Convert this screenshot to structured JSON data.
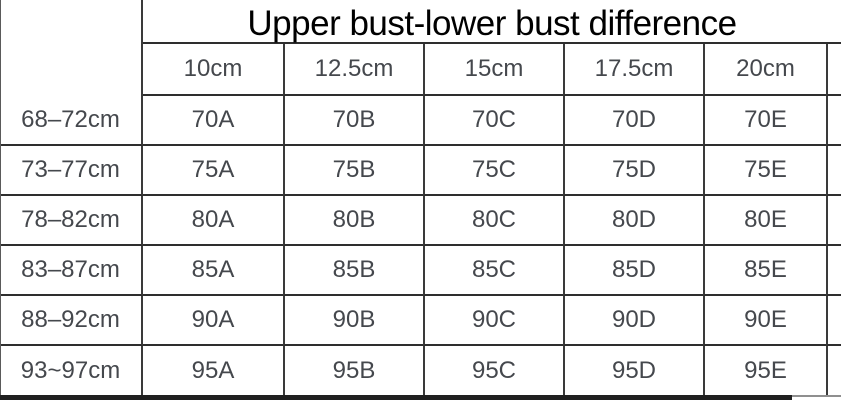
{
  "chart_data": {
    "type": "table",
    "title": "Upper bust-lower bust difference",
    "corner_label": "",
    "column_headers": [
      "10cm",
      "12.5cm",
      "15cm",
      "17.5cm",
      "20cm"
    ],
    "row_headers": [
      "68–72cm",
      "73–77cm",
      "78–82cm",
      "83–87cm",
      "88–92cm",
      "93~97cm"
    ],
    "rows": [
      [
        "70A",
        "70B",
        "70C",
        "70D",
        "70E"
      ],
      [
        "75A",
        "75B",
        "75C",
        "75D",
        "75E"
      ],
      [
        "80A",
        "80B",
        "80C",
        "80D",
        "80E"
      ],
      [
        "85A",
        "85B",
        "85C",
        "85D",
        "85E"
      ],
      [
        "90A",
        "90B",
        "90C",
        "90D",
        "90E"
      ],
      [
        "95A",
        "95B",
        "95C",
        "95D",
        "95E"
      ]
    ],
    "layout": {
      "grid": "on",
      "title_position": "top, spanning data columns",
      "row_header_column": "lower bust measurement (cm)"
    }
  },
  "colors": {
    "background": "#ffffff",
    "border": "#2e2e2e",
    "title_text": "#000000",
    "cell_text": "#45484d"
  }
}
